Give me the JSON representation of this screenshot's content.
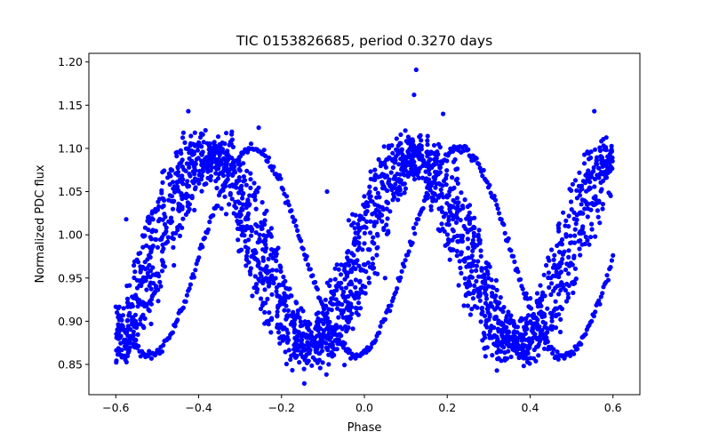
{
  "chart_data": {
    "type": "scatter",
    "title": "TIC 0153826685, period 0.3270 days",
    "xlabel": "Phase",
    "ylabel": "Normalized PDC flux",
    "xlim": [
      -0.665,
      0.665
    ],
    "ylim": [
      0.815,
      1.21
    ],
    "xticks": [
      -0.6,
      -0.4,
      -0.2,
      0.0,
      0.2,
      0.4,
      0.6
    ],
    "xtick_labels": [
      "−0.6",
      "−0.4",
      "−0.2",
      "0.0",
      "0.2",
      "0.4",
      "0.6"
    ],
    "yticks": [
      0.85,
      0.9,
      0.95,
      1.0,
      1.05,
      1.1,
      1.15,
      1.2
    ],
    "ytick_labels": [
      "0.85",
      "0.90",
      "0.95",
      "1.00",
      "1.05",
      "1.10",
      "1.15",
      "1.20"
    ],
    "grid": false,
    "legend": "none",
    "marker_color": "#0000ff",
    "phase_range": [
      -0.6,
      0.6
    ],
    "main_band": {
      "description": "dense sinusoidal light curve, two cycles per phase unit",
      "min_phase": [
        -0.6,
        -0.13,
        0.37
      ],
      "max_phase": [
        -0.38,
        0.13,
        0.62
      ],
      "flux_max": 1.095,
      "flux_min": 0.87
    },
    "secondary_track": {
      "description": "thin offset sinusoidal track",
      "min_phase": [
        -0.52,
        -0.02,
        0.48
      ],
      "max_phase": [
        -0.26,
        0.24
      ],
      "flux_max": 1.1,
      "flux_min": 0.86
    },
    "outliers": [
      {
        "x": 0.125,
        "y": 1.191
      },
      {
        "x": -0.255,
        "y": 1.124
      },
      {
        "x": 0.19,
        "y": 1.14
      },
      {
        "x": -0.145,
        "y": 0.828
      },
      {
        "x": 0.12,
        "y": 1.162
      },
      {
        "x": -0.09,
        "y": 1.05
      },
      {
        "x": -0.575,
        "y": 1.018
      },
      {
        "x": 0.05,
        "y": 0.95
      },
      {
        "x": -0.23,
        "y": 0.91
      },
      {
        "x": 0.385,
        "y": 0.858
      },
      {
        "x": 0.555,
        "y": 1.143
      },
      {
        "x": -0.425,
        "y": 1.143
      },
      {
        "x": -0.05,
        "y": 0.875
      },
      {
        "x": 0.575,
        "y": 1.03
      },
      {
        "x": 0.275,
        "y": 1.0
      }
    ]
  }
}
